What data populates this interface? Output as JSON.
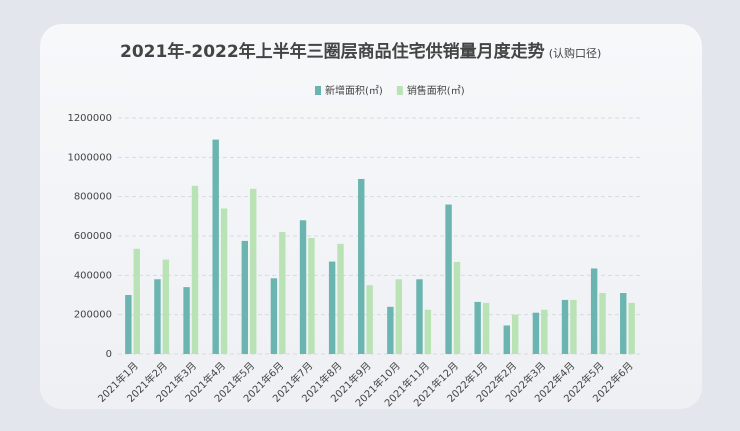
{
  "chart_data": {
    "type": "bar",
    "title": "2021年-2022年上半年三圈层商品住宅供销量月度走势",
    "subtitle": "(认购口径)",
    "categories": [
      "2021年1月",
      "2021年2月",
      "2021年3月",
      "2021年4月",
      "2021年5月",
      "2021年6月",
      "2021年7月",
      "2021年8月",
      "2021年9月",
      "2021年10月",
      "2021年11月",
      "2021年12月",
      "2022年1月",
      "2022年2月",
      "2022年3月",
      "2022年4月",
      "2022年5月",
      "2022年6月"
    ],
    "series": [
      {
        "name": "新增面积(㎡)",
        "color": "#6bb5b0",
        "values": [
          300000,
          380000,
          340000,
          1090000,
          575000,
          385000,
          680000,
          470000,
          890000,
          240000,
          380000,
          760000,
          265000,
          145000,
          210000,
          275000,
          435000,
          310000
        ]
      },
      {
        "name": "销售面积(㎡)",
        "color": "#b9e3b5",
        "values": [
          535000,
          480000,
          855000,
          740000,
          840000,
          620000,
          590000,
          560000,
          350000,
          380000,
          225000,
          468000,
          260000,
          200000,
          225000,
          275000,
          310000,
          260000
        ]
      }
    ],
    "ylim": [
      0,
      1200000
    ],
    "yticks": [
      0,
      200000,
      400000,
      600000,
      800000,
      1000000,
      1200000
    ],
    "grid": true
  }
}
